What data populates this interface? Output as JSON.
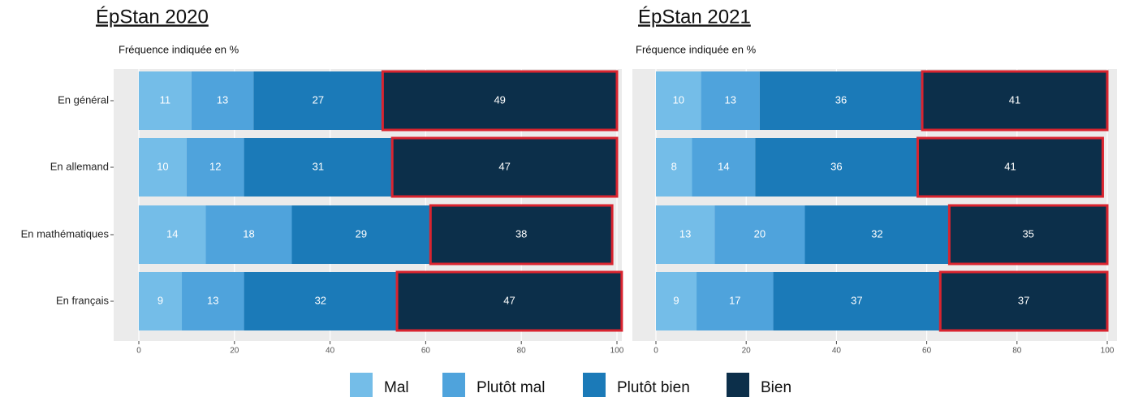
{
  "chart_data": [
    {
      "type": "bar",
      "orientation": "horizontal",
      "stacked": true,
      "title": "ÉpStan 2020",
      "x_label": "Fréquence indiquée en %",
      "categories": [
        "En général",
        "En allemand",
        "En mathématiques",
        "En français"
      ],
      "xlim": [
        0,
        100
      ],
      "xticks": [
        0,
        20,
        40,
        60,
        80,
        100
      ],
      "grid": true,
      "series": [
        {
          "name": "Mal",
          "color": "#74bde8",
          "values": [
            11,
            10,
            14,
            9
          ]
        },
        {
          "name": "Plutôt mal",
          "color": "#4fa3dc",
          "values": [
            13,
            12,
            18,
            13
          ]
        },
        {
          "name": "Plutôt bien",
          "color": "#1b7ab8",
          "values": [
            27,
            31,
            29,
            32
          ]
        },
        {
          "name": "Bien",
          "color": "#0c2f4a",
          "values": [
            49,
            47,
            38,
            47
          ]
        }
      ]
    },
    {
      "type": "bar",
      "orientation": "horizontal",
      "stacked": true,
      "title": "ÉpStan 2021",
      "x_label": "Fréquence indiquée en %",
      "xlim": [
        0,
        100
      ],
      "xticks": [
        0,
        20,
        40,
        60,
        80,
        100
      ],
      "grid": true,
      "series": [
        {
          "color": "#74bde8",
          "values": [
            10,
            8,
            13,
            9
          ]
        },
        {
          "color": "#4fa3dc",
          "values": [
            13,
            14,
            20,
            17
          ]
        },
        {
          "color": "#1b7ab8",
          "values": [
            36,
            36,
            32,
            37
          ]
        },
        {
          "color": "#0c2f4a",
          "values": [
            41,
            41,
            35,
            37
          ]
        }
      ]
    }
  ]
}
